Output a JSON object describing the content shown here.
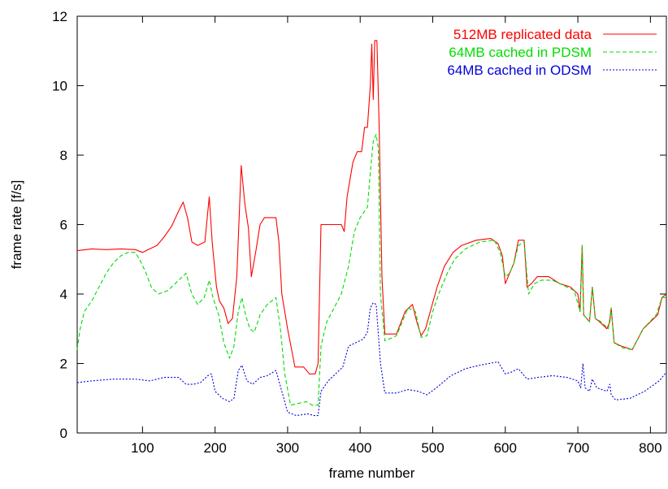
{
  "chart_data": {
    "type": "line",
    "title": "",
    "xlabel": "frame number",
    "ylabel": "frame rate [f/s]",
    "xlim": [
      10,
      822
    ],
    "ylim": [
      0,
      12
    ],
    "xticks": [
      100,
      200,
      300,
      400,
      500,
      600,
      700,
      800
    ],
    "yticks": [
      0,
      2,
      4,
      6,
      8,
      10,
      12
    ],
    "grid": false,
    "legend_position": "top-right",
    "series": [
      {
        "name": "512MB replicated data",
        "color": "#ff0000",
        "dash": "solid",
        "points": [
          [
            10,
            5.25
          ],
          [
            30,
            5.3
          ],
          [
            50,
            5.28
          ],
          [
            70,
            5.3
          ],
          [
            90,
            5.28
          ],
          [
            100,
            5.2
          ],
          [
            110,
            5.3
          ],
          [
            120,
            5.4
          ],
          [
            130,
            5.65
          ],
          [
            140,
            5.95
          ],
          [
            150,
            6.4
          ],
          [
            156,
            6.65
          ],
          [
            162,
            6.2
          ],
          [
            168,
            5.5
          ],
          [
            176,
            5.4
          ],
          [
            186,
            5.5
          ],
          [
            192,
            6.8
          ],
          [
            196,
            5.5
          ],
          [
            202,
            4.2
          ],
          [
            206,
            3.8
          ],
          [
            212,
            3.6
          ],
          [
            218,
            3.15
          ],
          [
            224,
            3.3
          ],
          [
            230,
            4.5
          ],
          [
            236,
            7.7
          ],
          [
            241,
            6.6
          ],
          [
            246,
            5.9
          ],
          [
            250,
            4.5
          ],
          [
            256,
            5.2
          ],
          [
            262,
            6.0
          ],
          [
            268,
            6.2
          ],
          [
            276,
            6.2
          ],
          [
            284,
            6.2
          ],
          [
            288,
            5.5
          ],
          [
            292,
            4.0
          ],
          [
            300,
            3.0
          ],
          [
            310,
            1.9
          ],
          [
            322,
            1.9
          ],
          [
            330,
            1.7
          ],
          [
            338,
            1.7
          ],
          [
            342,
            2.0
          ],
          [
            346,
            6.0
          ],
          [
            360,
            6.0
          ],
          [
            374,
            6.0
          ],
          [
            378,
            5.8
          ],
          [
            382,
            6.8
          ],
          [
            390,
            7.8
          ],
          [
            396,
            8.1
          ],
          [
            402,
            8.1
          ],
          [
            406,
            8.8
          ],
          [
            410,
            8.8
          ],
          [
            414,
            10.0
          ],
          [
            416,
            11.2
          ],
          [
            418,
            9.6
          ],
          [
            420,
            11.3
          ],
          [
            423,
            11.3
          ],
          [
            426,
            9.0
          ],
          [
            430,
            4.5
          ],
          [
            434,
            2.85
          ],
          [
            450,
            2.85
          ],
          [
            462,
            3.5
          ],
          [
            472,
            3.7
          ],
          [
            478,
            3.2
          ],
          [
            484,
            2.8
          ],
          [
            490,
            3.0
          ],
          [
            498,
            3.6
          ],
          [
            506,
            4.2
          ],
          [
            516,
            4.8
          ],
          [
            528,
            5.2
          ],
          [
            540,
            5.4
          ],
          [
            560,
            5.55
          ],
          [
            580,
            5.6
          ],
          [
            590,
            5.45
          ],
          [
            596,
            5.1
          ],
          [
            600,
            4.3
          ],
          [
            606,
            4.6
          ],
          [
            612,
            4.9
          ],
          [
            618,
            5.55
          ],
          [
            626,
            5.55
          ],
          [
            630,
            4.2
          ],
          [
            636,
            4.3
          ],
          [
            644,
            4.5
          ],
          [
            660,
            4.5
          ],
          [
            675,
            4.3
          ],
          [
            690,
            4.2
          ],
          [
            700,
            4.0
          ],
          [
            703,
            3.5
          ],
          [
            706,
            5.4
          ],
          [
            708,
            3.4
          ],
          [
            712,
            3.3
          ],
          [
            716,
            3.2
          ],
          [
            720,
            4.2
          ],
          [
            724,
            3.3
          ],
          [
            730,
            3.2
          ],
          [
            740,
            3.0
          ],
          [
            744,
            3.2
          ],
          [
            746,
            3.6
          ],
          [
            750,
            2.6
          ],
          [
            760,
            2.5
          ],
          [
            775,
            2.4
          ],
          [
            790,
            3.0
          ],
          [
            810,
            3.4
          ],
          [
            816,
            3.9
          ],
          [
            822,
            4.0
          ]
        ]
      },
      {
        "name": "64MB cached in PDSM",
        "color": "#00dd00",
        "dash": "5,3",
        "points": [
          [
            10,
            2.4
          ],
          [
            14,
            3.0
          ],
          [
            20,
            3.5
          ],
          [
            30,
            3.8
          ],
          [
            40,
            4.2
          ],
          [
            50,
            4.6
          ],
          [
            60,
            4.9
          ],
          [
            70,
            5.1
          ],
          [
            80,
            5.2
          ],
          [
            90,
            5.2
          ],
          [
            96,
            5.0
          ],
          [
            105,
            4.6
          ],
          [
            112,
            4.2
          ],
          [
            122,
            4.0
          ],
          [
            135,
            4.1
          ],
          [
            145,
            4.3
          ],
          [
            155,
            4.5
          ],
          [
            160,
            4.6
          ],
          [
            168,
            4.0
          ],
          [
            176,
            3.7
          ],
          [
            185,
            3.9
          ],
          [
            192,
            4.4
          ],
          [
            197,
            3.9
          ],
          [
            205,
            3.4
          ],
          [
            212,
            2.6
          ],
          [
            220,
            2.15
          ],
          [
            226,
            2.5
          ],
          [
            232,
            3.5
          ],
          [
            237,
            3.9
          ],
          [
            242,
            3.4
          ],
          [
            248,
            3.0
          ],
          [
            254,
            2.9
          ],
          [
            262,
            3.4
          ],
          [
            272,
            3.7
          ],
          [
            284,
            3.9
          ],
          [
            290,
            3.0
          ],
          [
            296,
            1.7
          ],
          [
            304,
            0.8
          ],
          [
            314,
            0.85
          ],
          [
            326,
            0.9
          ],
          [
            334,
            0.8
          ],
          [
            342,
            0.8
          ],
          [
            346,
            2.5
          ],
          [
            354,
            3.2
          ],
          [
            364,
            3.6
          ],
          [
            374,
            4.0
          ],
          [
            384,
            4.8
          ],
          [
            392,
            5.8
          ],
          [
            400,
            6.2
          ],
          [
            410,
            6.5
          ],
          [
            414,
            7.5
          ],
          [
            418,
            8.4
          ],
          [
            422,
            8.6
          ],
          [
            425,
            8.2
          ],
          [
            428,
            4.0
          ],
          [
            434,
            2.65
          ],
          [
            450,
            2.8
          ],
          [
            458,
            3.2
          ],
          [
            466,
            3.6
          ],
          [
            476,
            3.5
          ],
          [
            484,
            2.75
          ],
          [
            492,
            2.8
          ],
          [
            500,
            3.5
          ],
          [
            510,
            4.1
          ],
          [
            520,
            4.6
          ],
          [
            530,
            5.0
          ],
          [
            545,
            5.3
          ],
          [
            565,
            5.5
          ],
          [
            585,
            5.55
          ],
          [
            593,
            5.2
          ],
          [
            600,
            4.5
          ],
          [
            606,
            4.6
          ],
          [
            612,
            4.9
          ],
          [
            618,
            5.4
          ],
          [
            626,
            5.5
          ],
          [
            632,
            4.0
          ],
          [
            640,
            4.3
          ],
          [
            650,
            4.4
          ],
          [
            665,
            4.4
          ],
          [
            680,
            4.25
          ],
          [
            695,
            4.1
          ],
          [
            703,
            3.5
          ],
          [
            706,
            5.4
          ],
          [
            708,
            3.4
          ],
          [
            716,
            3.2
          ],
          [
            720,
            4.2
          ],
          [
            724,
            3.3
          ],
          [
            732,
            3.2
          ],
          [
            742,
            3.0
          ],
          [
            746,
            3.6
          ],
          [
            750,
            2.6
          ],
          [
            762,
            2.45
          ],
          [
            775,
            2.4
          ],
          [
            790,
            3.0
          ],
          [
            808,
            3.4
          ],
          [
            816,
            3.9
          ],
          [
            822,
            3.9
          ]
        ]
      },
      {
        "name": "64MB cached in ODSM",
        "color": "#0000dd",
        "dash": "2,2",
        "points": [
          [
            10,
            1.45
          ],
          [
            30,
            1.5
          ],
          [
            60,
            1.55
          ],
          [
            90,
            1.55
          ],
          [
            110,
            1.5
          ],
          [
            130,
            1.6
          ],
          [
            150,
            1.6
          ],
          [
            160,
            1.4
          ],
          [
            170,
            1.4
          ],
          [
            180,
            1.45
          ],
          [
            190,
            1.65
          ],
          [
            195,
            1.7
          ],
          [
            200,
            1.2
          ],
          [
            210,
            1.0
          ],
          [
            220,
            0.9
          ],
          [
            226,
            1.0
          ],
          [
            232,
            1.8
          ],
          [
            237,
            1.95
          ],
          [
            244,
            1.5
          ],
          [
            252,
            1.4
          ],
          [
            262,
            1.6
          ],
          [
            272,
            1.65
          ],
          [
            284,
            1.8
          ],
          [
            292,
            1.2
          ],
          [
            300,
            0.6
          ],
          [
            312,
            0.5
          ],
          [
            328,
            0.55
          ],
          [
            336,
            0.5
          ],
          [
            342,
            0.5
          ],
          [
            346,
            1.2
          ],
          [
            356,
            1.5
          ],
          [
            366,
            1.7
          ],
          [
            376,
            1.9
          ],
          [
            384,
            2.5
          ],
          [
            394,
            2.6
          ],
          [
            404,
            2.7
          ],
          [
            410,
            2.9
          ],
          [
            414,
            3.6
          ],
          [
            418,
            3.75
          ],
          [
            422,
            3.7
          ],
          [
            428,
            2.0
          ],
          [
            434,
            1.15
          ],
          [
            450,
            1.15
          ],
          [
            466,
            1.25
          ],
          [
            480,
            1.2
          ],
          [
            492,
            1.1
          ],
          [
            505,
            1.3
          ],
          [
            525,
            1.65
          ],
          [
            545,
            1.85
          ],
          [
            565,
            1.95
          ],
          [
            590,
            2.05
          ],
          [
            600,
            1.7
          ],
          [
            608,
            1.75
          ],
          [
            618,
            1.85
          ],
          [
            630,
            1.55
          ],
          [
            645,
            1.6
          ],
          [
            665,
            1.65
          ],
          [
            685,
            1.6
          ],
          [
            700,
            1.5
          ],
          [
            704,
            1.3
          ],
          [
            707,
            2.0
          ],
          [
            710,
            1.3
          ],
          [
            716,
            1.2
          ],
          [
            720,
            1.55
          ],
          [
            726,
            1.3
          ],
          [
            740,
            1.2
          ],
          [
            744,
            1.4
          ],
          [
            746,
            1.1
          ],
          [
            752,
            0.95
          ],
          [
            772,
            1.0
          ],
          [
            792,
            1.2
          ],
          [
            812,
            1.5
          ],
          [
            822,
            1.75
          ]
        ]
      }
    ]
  }
}
